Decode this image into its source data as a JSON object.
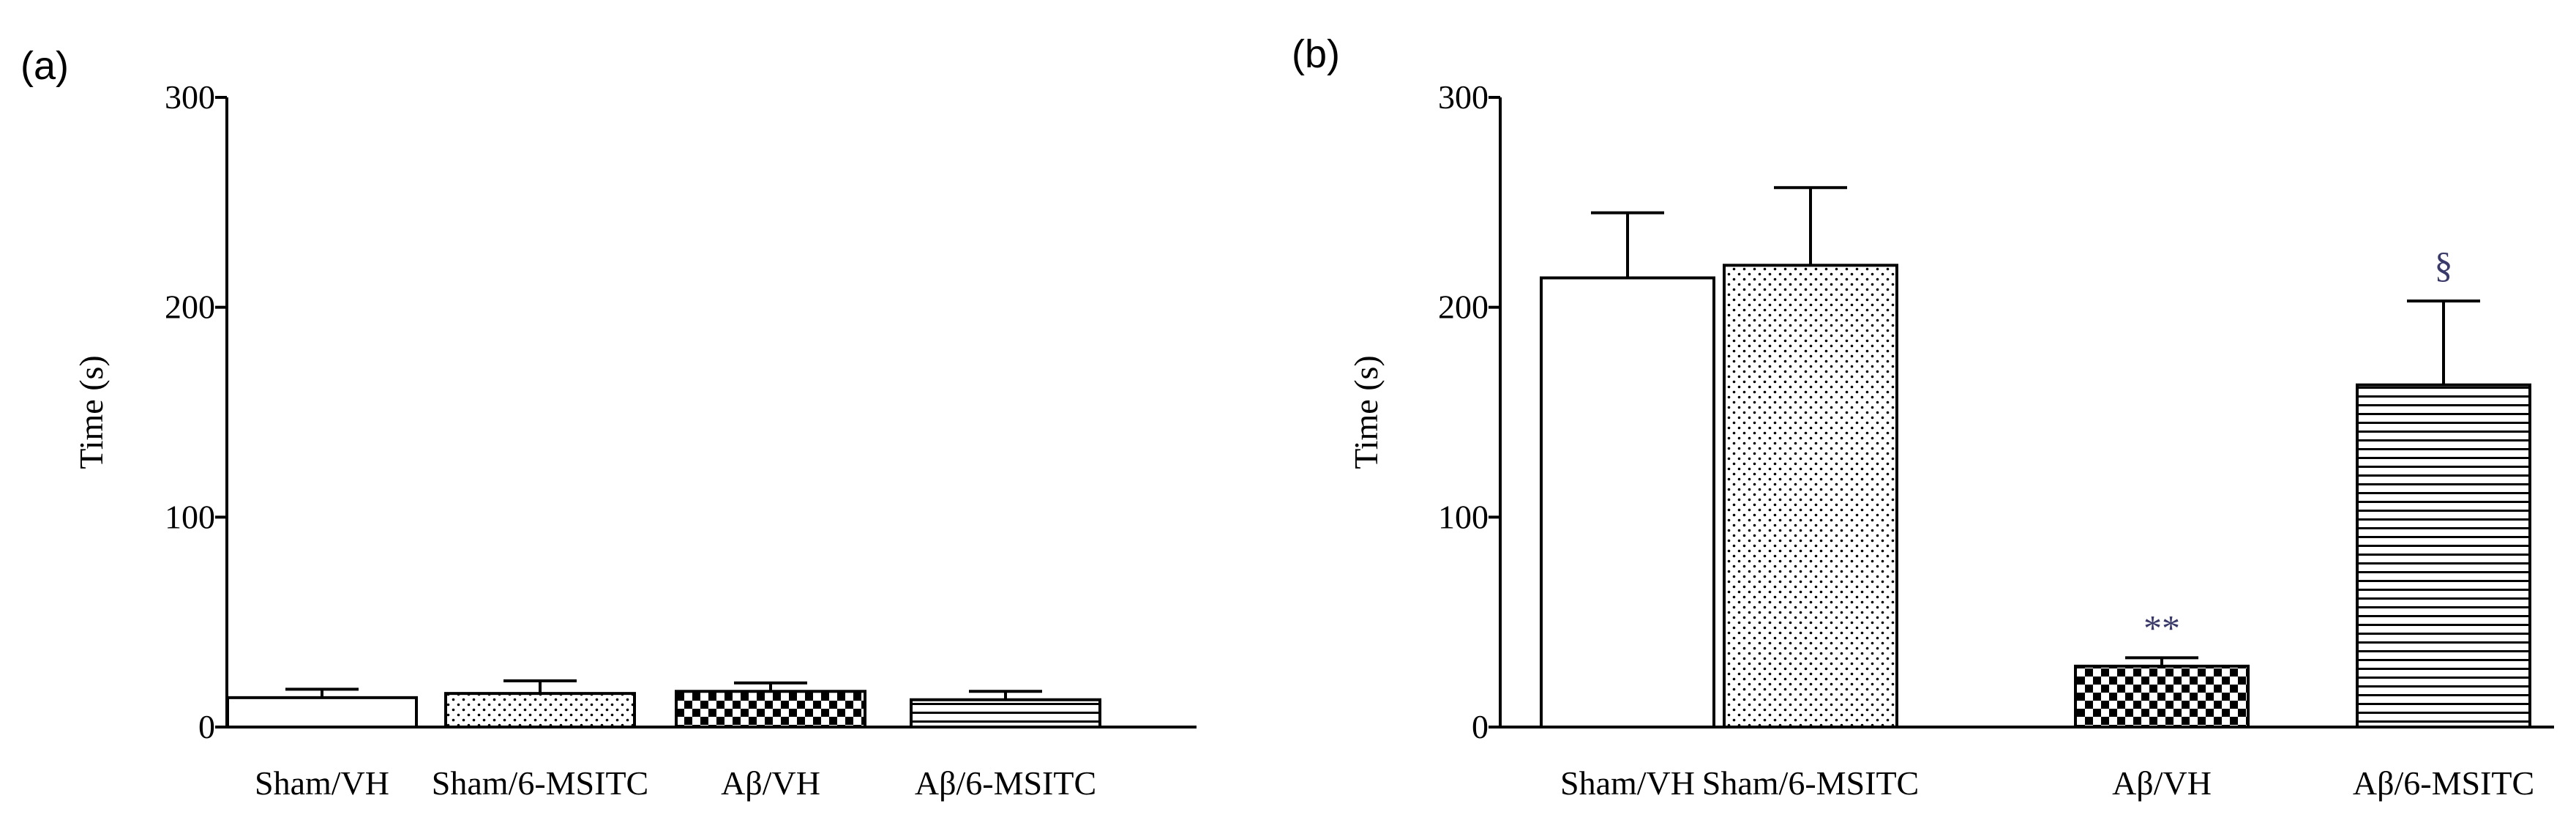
{
  "colors": {
    "ink": "#000000",
    "annotation": "#3a3a6a",
    "background": "#ffffff"
  },
  "chart_data": [
    {
      "type": "bar",
      "panel_label": "(a)",
      "ylabel": "Time (s)",
      "xlabel": "",
      "ylim": [
        0,
        300
      ],
      "yticks": [
        0,
        100,
        200,
        300
      ],
      "categories": [
        "Sham/VH",
        "Sham/6-MSITC",
        "Aβ/VH",
        "Aβ/6-MSITC"
      ],
      "patterns": [
        "none",
        "dots",
        "checker",
        "horizontal-lines"
      ],
      "values": [
        14,
        16,
        17,
        13
      ],
      "errors": [
        4,
        6,
        4,
        4
      ],
      "annotations": [
        "",
        "",
        "",
        ""
      ],
      "grid": false,
      "legend": "none"
    },
    {
      "type": "bar",
      "panel_label": "(b)",
      "ylabel": "Time (s)",
      "xlabel": "",
      "ylim": [
        0,
        300
      ],
      "yticks": [
        0,
        100,
        200,
        300
      ],
      "categories": [
        "Sham/VH",
        "Sham/6-MSITC",
        "Aβ/VH",
        "Aβ/6-MSITC"
      ],
      "patterns": [
        "none",
        "dots",
        "checker",
        "horizontal-lines"
      ],
      "values": [
        214,
        220,
        29,
        163
      ],
      "errors": [
        31,
        37,
        4,
        40
      ],
      "annotations": [
        "",
        "",
        "**",
        "§"
      ],
      "grid": false,
      "legend": "none"
    }
  ]
}
